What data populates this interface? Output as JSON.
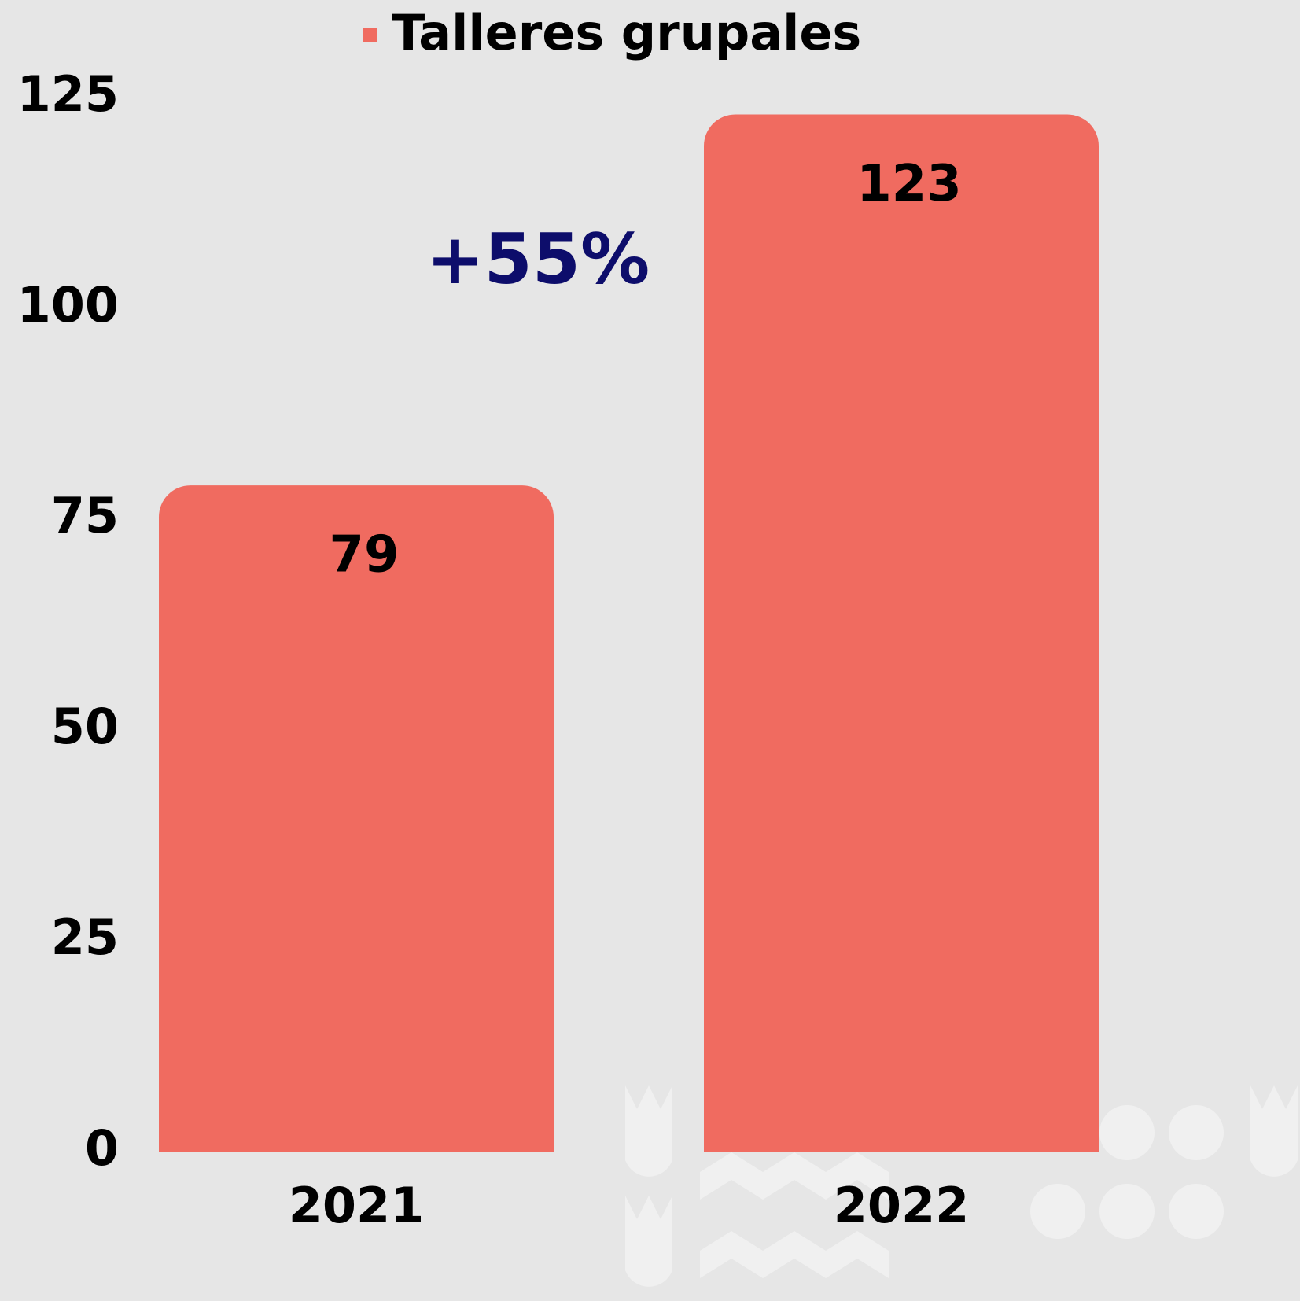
{
  "chart_data": {
    "type": "bar",
    "categories": [
      "2021",
      "2022"
    ],
    "series": [
      {
        "name": "Talleres grupales",
        "color": "#f06b60",
        "values": [
          79,
          123
        ]
      }
    ],
    "ylim": [
      0,
      125
    ],
    "yticks": [
      0,
      25,
      50,
      75,
      100,
      125
    ],
    "annotation": "+55%",
    "annotation_color": "#0d0d6b",
    "grid": false
  }
}
